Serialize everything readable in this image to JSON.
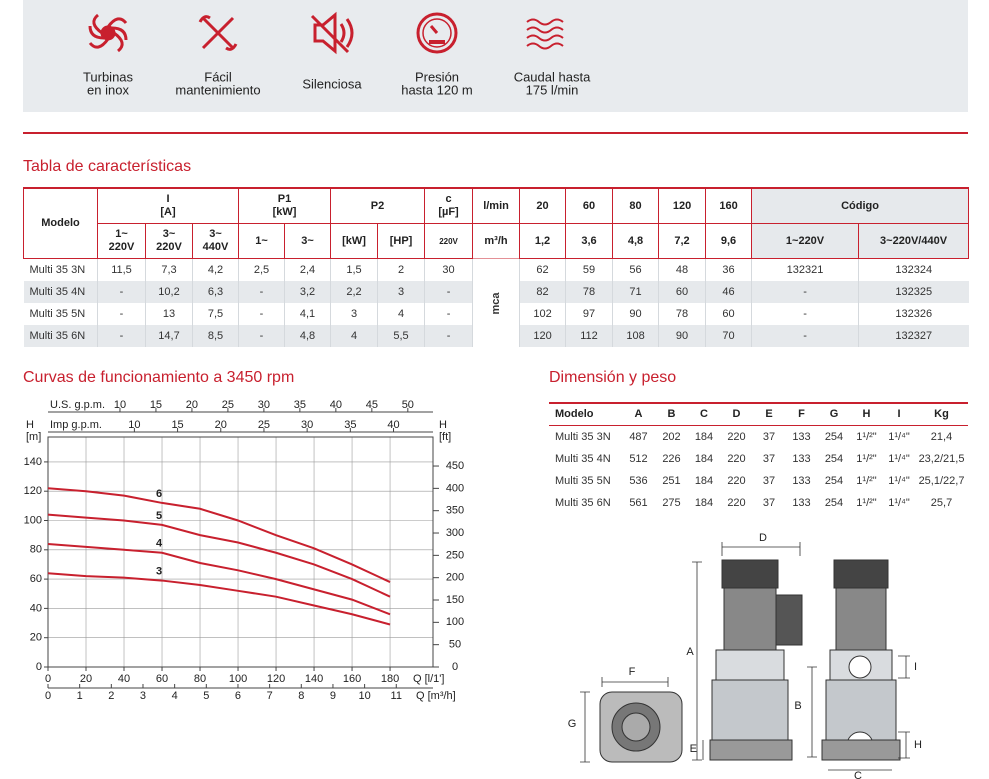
{
  "features": [
    {
      "lines": [
        "Turbinas",
        "en inox"
      ]
    },
    {
      "lines": [
        "Fácil",
        "mantenimiento"
      ]
    },
    {
      "lines": [
        "Silenciosa"
      ]
    },
    {
      "lines": [
        "Presión",
        "hasta 120 m"
      ]
    },
    {
      "lines": [
        "Caudal hasta",
        "175 l/min"
      ]
    }
  ],
  "specs": {
    "title": "Tabla de características",
    "model_label": "Modelo",
    "i": {
      "label": "I",
      "unit": "[A]",
      "sub": [
        [
          "1~",
          "220V"
        ],
        [
          "3~",
          "220V"
        ],
        [
          "3~",
          "440V"
        ]
      ]
    },
    "p1": {
      "label": "P1",
      "unit": "[kW]",
      "sub": [
        "1~",
        "3~"
      ]
    },
    "p2": {
      "label": "P2",
      "sub": [
        "[kW]",
        "[HP]"
      ]
    },
    "c": {
      "label": "c",
      "unit": "[µF]",
      "sub": "220V"
    },
    "flow": {
      "lmin_label": "l/min",
      "m3h_label": "m³/h",
      "lmin": [
        "20",
        "60",
        "80",
        "120",
        "160"
      ],
      "m3h": [
        "1,2",
        "3,6",
        "4,8",
        "7,2",
        "9,6"
      ]
    },
    "code": {
      "label": "Código",
      "sub": [
        "1~220V",
        "3~220V/440V"
      ]
    },
    "head_unit": "mca",
    "rows": [
      {
        "model": "Multi 35 3N",
        "values": [
          "11,5",
          "7,3",
          "4,2",
          "2,5",
          "2,4",
          "1,5",
          "2",
          "30"
        ],
        "heads": [
          "62",
          "59",
          "56",
          "48",
          "36"
        ],
        "codes": [
          "132321",
          "132324"
        ]
      },
      {
        "model": "Multi 35 4N",
        "values": [
          "-",
          "10,2",
          "6,3",
          "-",
          "3,2",
          "2,2",
          "3",
          "-"
        ],
        "heads": [
          "82",
          "78",
          "71",
          "60",
          "46"
        ],
        "codes": [
          "-",
          "132325"
        ]
      },
      {
        "model": "Multi 35 5N",
        "values": [
          "-",
          "13",
          "7,5",
          "-",
          "4,1",
          "3",
          "4",
          "-"
        ],
        "heads": [
          "102",
          "97",
          "90",
          "78",
          "60"
        ],
        "codes": [
          "-",
          "132326"
        ]
      },
      {
        "model": "Multi 35 6N",
        "values": [
          "-",
          "14,7",
          "8,5",
          "-",
          "4,8",
          "4",
          "5,5",
          "-"
        ],
        "heads": [
          "120",
          "112",
          "108",
          "90",
          "70"
        ],
        "codes": [
          "-",
          "132327"
        ]
      }
    ]
  },
  "chart_data": {
    "type": "line",
    "title": "Curvas de funcionamiento a 3450 rpm",
    "x": [
      0,
      20,
      40,
      60,
      80,
      100,
      120,
      140,
      160,
      180
    ],
    "xlim": [
      0,
      202.6
    ],
    "xticks": [
      0,
      20,
      40,
      60,
      80,
      100,
      120,
      140,
      160,
      180
    ],
    "x_label": "Q [l/1']",
    "ylim": [
      0,
      157
    ],
    "yticks": [
      0,
      20,
      40,
      60,
      80,
      100,
      120,
      140
    ],
    "y_label": [
      "H",
      "[m]"
    ],
    "y2lim": [
      0,
      515
    ],
    "y2ticks": [
      0,
      50,
      100,
      150,
      200,
      250,
      300,
      350,
      400,
      450
    ],
    "y2_label": [
      "H",
      "[ft]"
    ],
    "x2": {
      "label": "Q [m³/h]",
      "lim": [
        0,
        12.16
      ],
      "ticks": [
        0,
        1,
        2,
        3,
        4,
        5,
        6,
        7,
        8,
        9,
        10,
        11
      ]
    },
    "x_top": {
      "label": "U.S. g.p.m.",
      "lim": [
        0,
        53.5
      ],
      "ticks": [
        10,
        15,
        20,
        25,
        30,
        35,
        40,
        45,
        50
      ]
    },
    "x_top2": {
      "label": "Imp g.p.m.",
      "lim": [
        0,
        44.57
      ],
      "ticks": [
        10,
        15,
        20,
        25,
        30,
        35,
        40
      ]
    },
    "grid": true,
    "series": [
      {
        "name": "3",
        "color": "#c8202e",
        "values": [
          64,
          62,
          61,
          59,
          56,
          52,
          48,
          42,
          36,
          29
        ]
      },
      {
        "name": "4",
        "color": "#c8202e",
        "values": [
          84,
          82,
          80,
          78,
          71,
          66,
          60,
          53,
          46,
          36
        ]
      },
      {
        "name": "5",
        "color": "#c8202e",
        "values": [
          104,
          102,
          100,
          97,
          90,
          85,
          78,
          70,
          60,
          48
        ]
      },
      {
        "name": "6",
        "color": "#c8202e",
        "values": [
          122,
          120,
          117,
          112,
          108,
          100,
          90,
          81,
          70,
          58
        ]
      }
    ]
  },
  "dimensions": {
    "title": "Dimensión y peso",
    "columns": [
      "Modelo",
      "A",
      "B",
      "C",
      "D",
      "E",
      "F",
      "G",
      "H",
      "I",
      "Kg"
    ],
    "rows": [
      [
        "Multi 35 3N",
        "487",
        "202",
        "184",
        "220",
        "37",
        "133",
        "254",
        "1¹/²\"",
        "1¹/⁴\"",
        "21,4"
      ],
      [
        "Multi 35 4N",
        "512",
        "226",
        "184",
        "220",
        "37",
        "133",
        "254",
        "1¹/²\"",
        "1¹/⁴\"",
        "23,2/21,5"
      ],
      [
        "Multi 35 5N",
        "536",
        "251",
        "184",
        "220",
        "37",
        "133",
        "254",
        "1¹/²\"",
        "1¹/⁴\"",
        "25,1/22,7"
      ],
      [
        "Multi 35 6N",
        "561",
        "275",
        "184",
        "220",
        "37",
        "133",
        "254",
        "1¹/²\"",
        "1¹/⁴\"",
        "25,7"
      ]
    ]
  },
  "diagram": {
    "labels": [
      "D",
      "A",
      "F",
      "G",
      "B",
      "E",
      "I",
      "H",
      "C"
    ]
  }
}
